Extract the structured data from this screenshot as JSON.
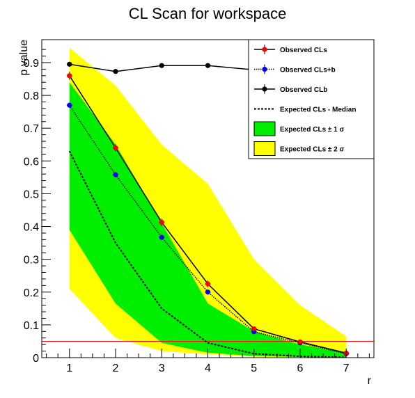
{
  "chart_data": {
    "type": "line",
    "title": "CL Scan for workspace",
    "xlabel": "r",
    "ylabel": "p value",
    "xlim": [
      0.4,
      7.6
    ],
    "ylim": [
      0,
      0.97
    ],
    "x": [
      1,
      2,
      3,
      4,
      5,
      6,
      7
    ],
    "x_ticks": [
      "1",
      "2",
      "3",
      "4",
      "5",
      "6",
      "7"
    ],
    "y_ticks": [
      "0",
      "0.1",
      "0.2",
      "0.3",
      "0.4",
      "0.5",
      "0.6",
      "0.7",
      "0.8",
      "0.9"
    ],
    "y_tick_values": [
      0,
      0.1,
      0.2,
      0.3,
      0.4,
      0.5,
      0.6,
      0.7,
      0.8,
      0.9
    ],
    "threshold": 0.05,
    "threshold_color": "#ff0000",
    "series": [
      {
        "name": "Observed CLs",
        "style": "solid",
        "color": "#000000",
        "marker_color": "#ff0000",
        "values": [
          0.86,
          0.64,
          0.413,
          0.225,
          0.088,
          0.048,
          0.014
        ],
        "errors": [
          0.012,
          0.011,
          0.011,
          0.01,
          0.007,
          0.004,
          0.003
        ]
      },
      {
        "name": "Observed CLs+b",
        "style": "dotted",
        "color": "#000000",
        "marker_color": "#0000ff",
        "values": [
          0.77,
          0.558,
          0.367,
          0.2,
          0.079,
          0.045,
          0.012
        ],
        "errors": [
          0.008,
          0.008,
          0.008,
          0.007,
          0.005,
          0.003,
          0.002
        ]
      },
      {
        "name": "Observed CLb",
        "style": "solid",
        "color": "#000000",
        "marker_color": "#000000",
        "values": [
          0.895,
          0.873,
          0.891,
          0.891,
          0.878,
          0.9,
          0.878
        ],
        "errors": [
          0.006,
          0.006,
          0.006,
          0.006,
          0.006,
          0.006,
          0.006
        ]
      },
      {
        "name": "Expected CLs - Median",
        "style": "dashed",
        "color": "#000000",
        "values": [
          0.63,
          0.35,
          0.15,
          0.045,
          0.012,
          0.004,
          0.001
        ]
      }
    ],
    "bands": [
      {
        "name": "Expected CLs ± 2 σ",
        "color": "#ffff00",
        "lower": [
          0.21,
          0.06,
          0.02,
          0.01,
          0.003,
          0.001,
          0.0
        ],
        "upper": [
          0.945,
          0.83,
          0.65,
          0.53,
          0.3,
          0.16,
          0.065
        ]
      },
      {
        "name": "Expected CLs ± 1 σ",
        "color": "#00ee00",
        "lower": [
          0.39,
          0.165,
          0.045,
          0.015,
          0.005,
          0.002,
          0.001
        ],
        "upper": [
          0.84,
          0.65,
          0.41,
          0.165,
          0.08,
          0.04,
          0.015
        ]
      }
    ],
    "legend": {
      "position": "top-right",
      "entries": [
        "Observed CLs",
        "Observed CLs+b",
        "Observed CLb",
        "Expected CLs - Median",
        "Expected CLs ± 1 σ",
        "Expected CLs ± 2 σ"
      ]
    }
  }
}
